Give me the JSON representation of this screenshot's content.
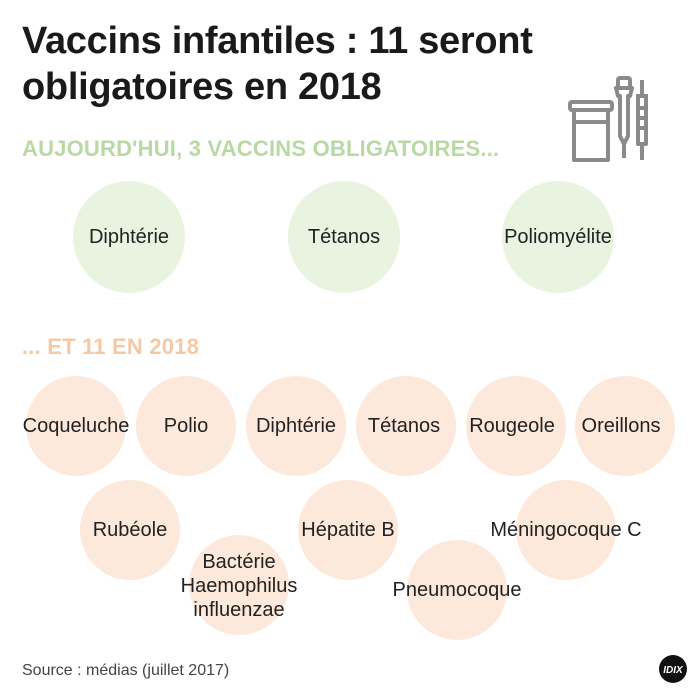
{
  "title": "Vaccins infantiles : 11 seront obligatoires en 2018",
  "today": {
    "heading": "AUJOURD'HUI, 3 VACCINS OBLIGATOIRES...",
    "vaccines": [
      "Diphtérie",
      "Tétanos",
      "Poliomyélite"
    ]
  },
  "future": {
    "heading": "... ET 11 EN 2018",
    "vaccines": [
      "Coqueluche",
      "Polio",
      "Diphtérie",
      "Tétanos",
      "Rougeole",
      "Oreillons",
      "Rubéole",
      "Bactérie Haemophilus influenzae",
      "Hépatite B",
      "Pneumocoque",
      "Méningocoque C"
    ]
  },
  "source": "Source : médias (juillet 2017)",
  "logo_text": "IDIX",
  "colors": {
    "green_heading": "#b9d9a4",
    "green_circle": "#e8f4e0",
    "peach_heading": "#f4c9a4",
    "peach_circle": "#fde9dc"
  },
  "icons": [
    "medicine-vials-icon",
    "idix-logo"
  ]
}
